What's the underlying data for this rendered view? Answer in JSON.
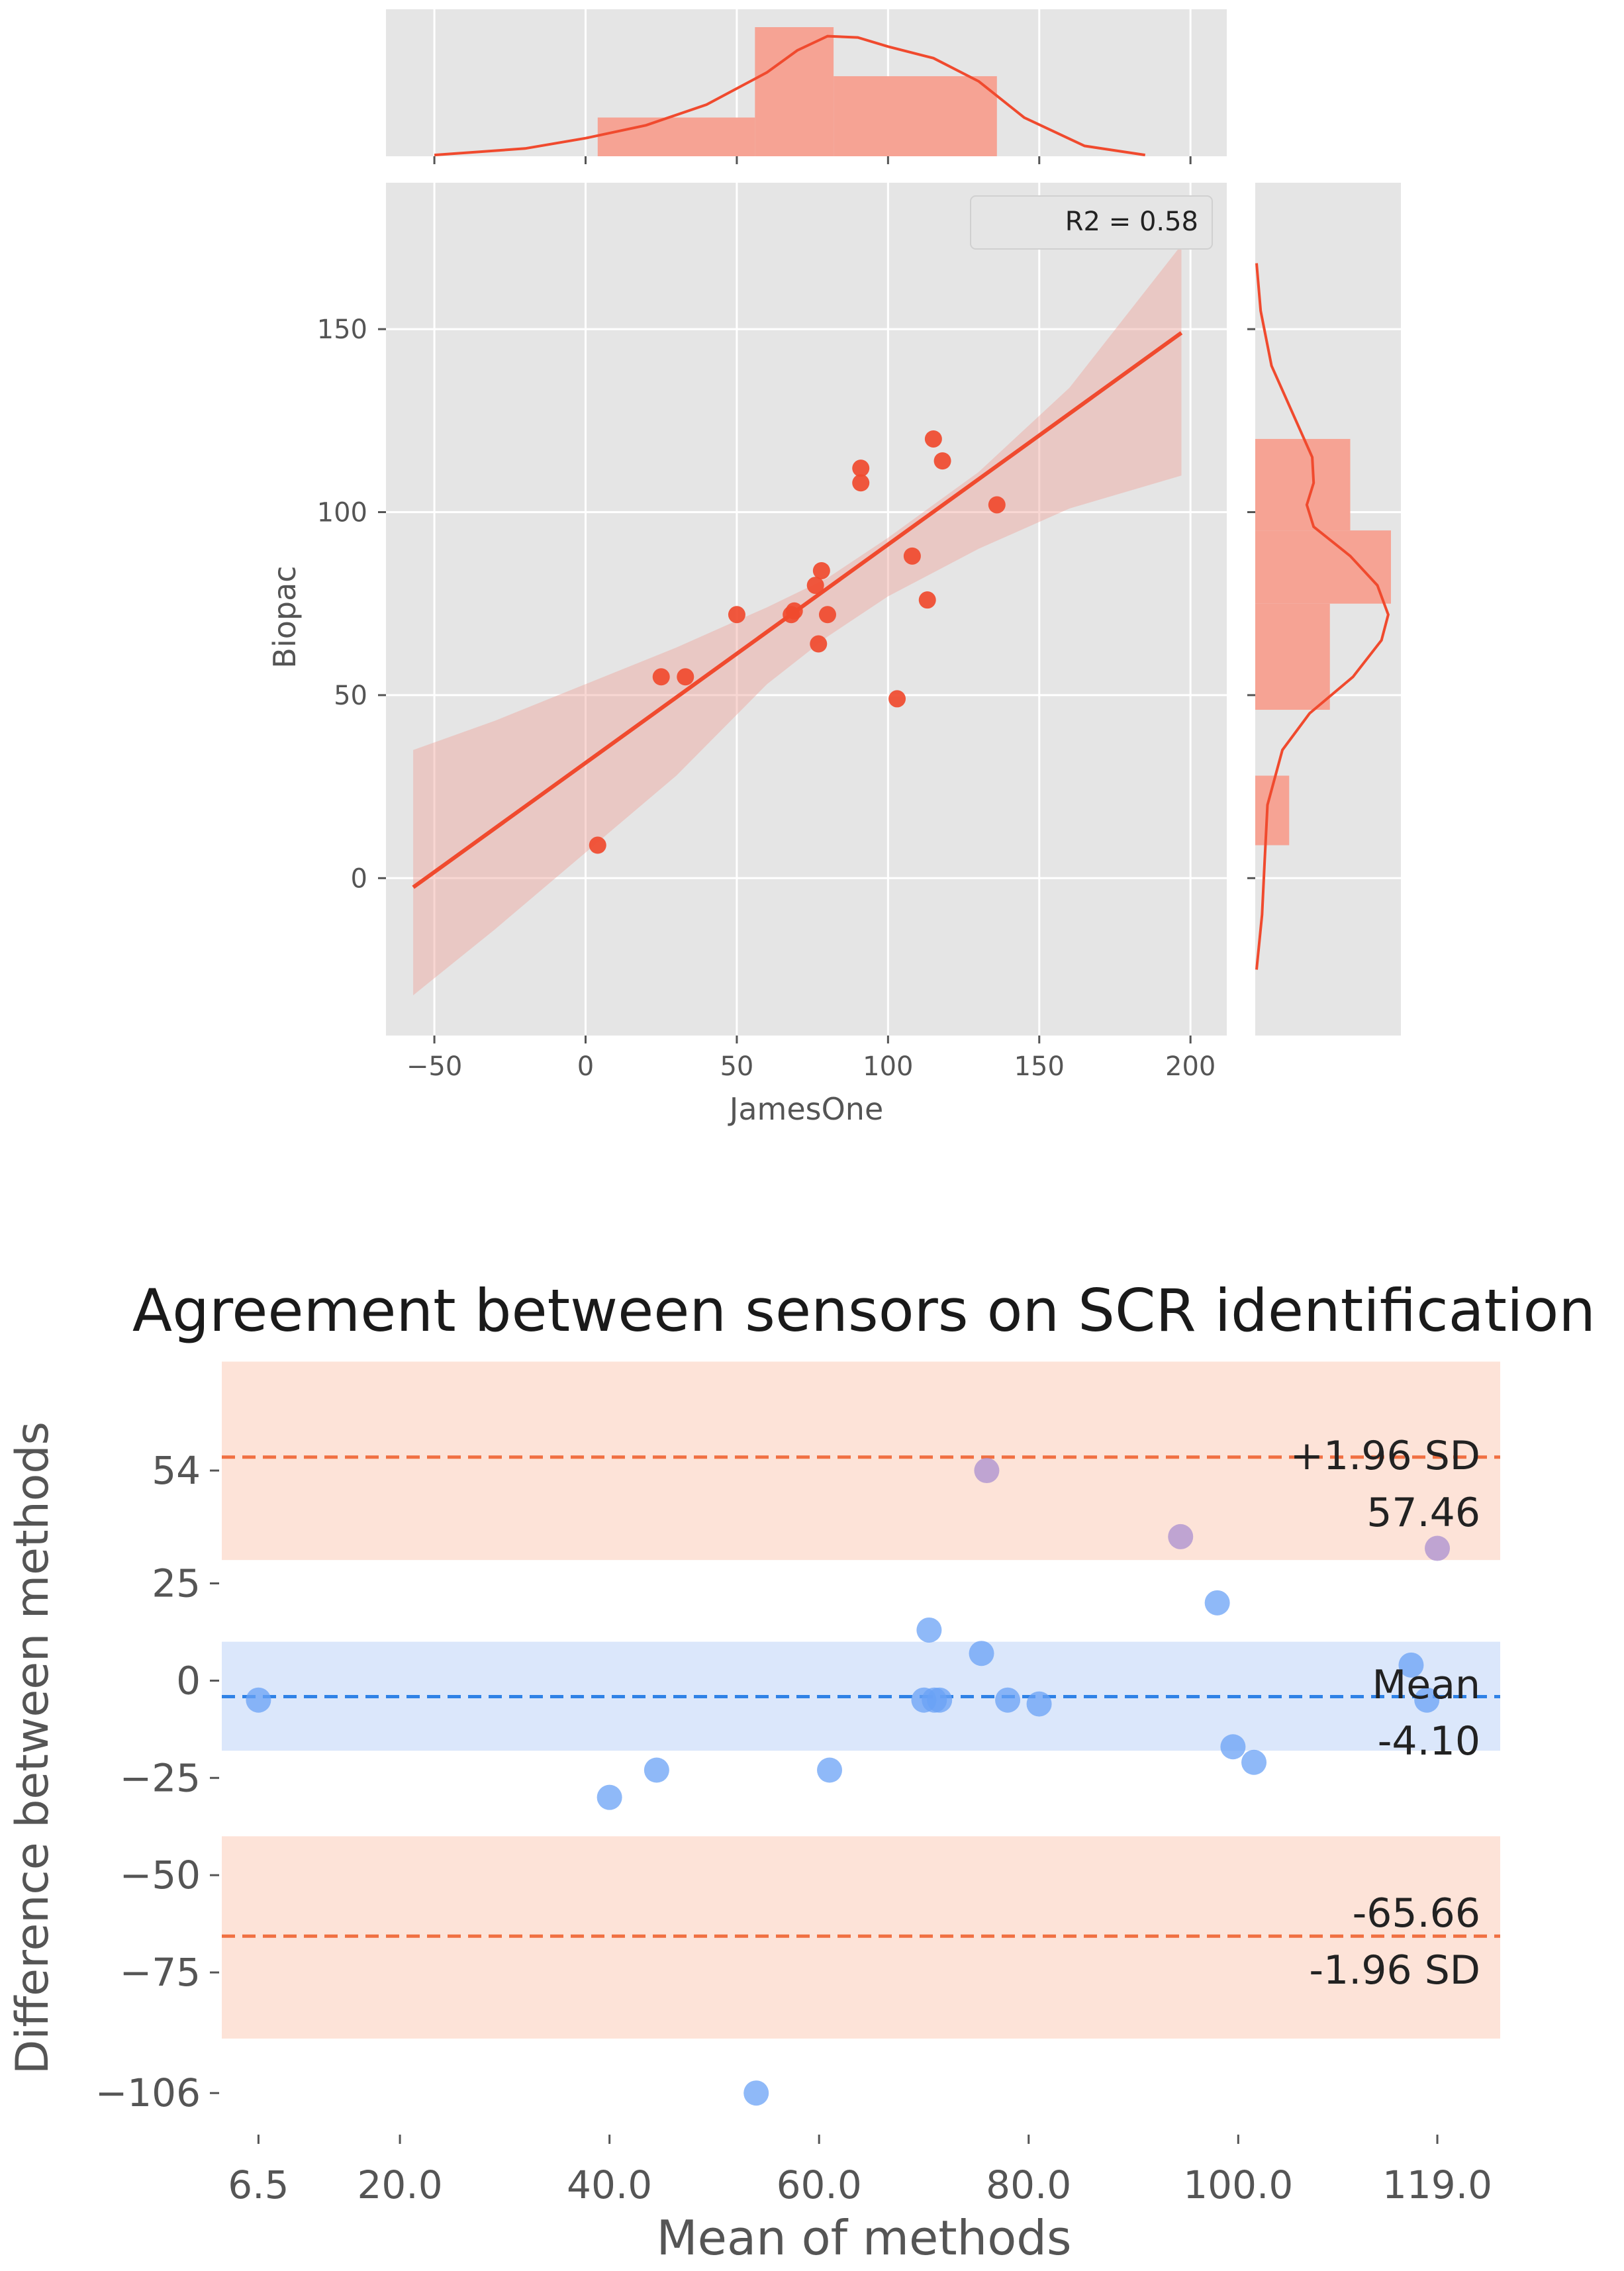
{
  "chart_data": [
    {
      "type": "scatter",
      "subtype": "jointplot-regression",
      "title": "",
      "xlabel": "JamesOne",
      "ylabel": "Biopac",
      "xlim": [
        -66,
        212
      ],
      "ylim": [
        -43,
        190
      ],
      "xticks": [
        -50,
        0,
        50,
        100,
        150,
        200
      ],
      "xtick_labels": [
        "−50",
        "0",
        "50",
        "100",
        "150",
        "200"
      ],
      "yticks": [
        0,
        50,
        100,
        150
      ],
      "ytick_labels": [
        "0",
        "50",
        "100",
        "150"
      ],
      "annotation": "R2 = 0.58",
      "points": {
        "x": [
          4,
          25,
          33,
          50,
          68,
          69,
          76,
          77,
          78,
          80,
          91,
          91,
          103,
          108,
          113,
          115,
          118,
          136
        ],
        "y": [
          9,
          55,
          55,
          72,
          72,
          73,
          80,
          64,
          84,
          72,
          108,
          112,
          49,
          88,
          76,
          120,
          114,
          102
        ]
      },
      "regression": {
        "x": [
          -57,
          197
        ],
        "y": [
          -2.5,
          149
        ]
      },
      "confidence_band": {
        "x": [
          -57,
          -30,
          0,
          30,
          60,
          80,
          100,
          130,
          160,
          197
        ],
        "upper": [
          35,
          43,
          53,
          63,
          74,
          82,
          93,
          111,
          134,
          173
        ],
        "lower": [
          -32,
          -14,
          7,
          28,
          53,
          66,
          77,
          90,
          101,
          110
        ]
      },
      "grid": true,
      "x_marginal": {
        "bins": [
          [
            4,
            56,
            0.3
          ],
          [
            56,
            82,
            1.0
          ],
          [
            82,
            136,
            0.62
          ]
        ],
        "kde_x": [
          -50,
          -20,
          0,
          20,
          40,
          60,
          70,
          80,
          90,
          100,
          115,
          130,
          145,
          165,
          185
        ],
        "kde_y": [
          0.01,
          0.06,
          0.14,
          0.24,
          0.4,
          0.65,
          0.82,
          0.93,
          0.92,
          0.85,
          0.76,
          0.58,
          0.3,
          0.08,
          0.01
        ]
      },
      "y_marginal": {
        "bins": [
          [
            9,
            28,
            0.25
          ],
          [
            46,
            75,
            0.55
          ],
          [
            75,
            95,
            1.0
          ],
          [
            95,
            120,
            0.7
          ]
        ],
        "kde_y": [
          -25,
          -10,
          5,
          20,
          35,
          45,
          55,
          65,
          72,
          80,
          88,
          96,
          102,
          108,
          115,
          125,
          140,
          155,
          168
        ],
        "kde_x": [
          0.01,
          0.05,
          0.07,
          0.09,
          0.2,
          0.4,
          0.72,
          0.93,
          0.98,
          0.9,
          0.7,
          0.43,
          0.38,
          0.43,
          0.42,
          0.3,
          0.12,
          0.04,
          0.01
        ]
      }
    },
    {
      "type": "scatter",
      "subtype": "bland-altman",
      "title": "Agreement between sensors on SCR identification",
      "xlabel": "Mean of methods",
      "ylabel": "Difference between methods",
      "xlim": [
        3,
        125
      ],
      "ylim": [
        -116,
        78
      ],
      "xticks": [
        6.5,
        20.0,
        40.0,
        60.0,
        80.0,
        100.0,
        119.0
      ],
      "xtick_labels": [
        "6.5",
        "20.0",
        "40.0",
        "60.0",
        "80.0",
        "100.0",
        "119.0"
      ],
      "yticks": [
        54,
        25,
        0,
        -25,
        -50,
        -75,
        -106
      ],
      "ytick_labels": [
        "54",
        "25",
        "0",
        "−25",
        "−50",
        "−75",
        "−106"
      ],
      "mean_line": -4.1,
      "upper_loa": 57.46,
      "lower_loa": -65.66,
      "labels": {
        "upper_sd": "+1.96 SD",
        "upper_value": "57.46",
        "mean": "Mean",
        "mean_value": "-4.10",
        "lower_value": "-65.66",
        "lower_sd": "-1.96 SD"
      },
      "bands": {
        "upper": [
          31,
          82
        ],
        "mean": [
          -18,
          10
        ],
        "lower": [
          -92,
          -40
        ]
      },
      "points": {
        "x": [
          6.5,
          40,
          44.5,
          54,
          61,
          70,
          70.5,
          71,
          71.5,
          75.5,
          76,
          78,
          81,
          94.5,
          98,
          99.5,
          101.5,
          116.5,
          118,
          119
        ],
        "y": [
          -5,
          -30,
          -23,
          -106,
          -23,
          -5,
          13,
          -5,
          -5,
          7,
          54,
          -5,
          -6,
          37,
          20,
          -17,
          -21,
          4,
          -5,
          34
        ]
      },
      "colors": {
        "points": "#6aa1f5",
        "points_in_band": "#a98fd0",
        "mean_line": "#2f82e6",
        "loa_line": "#f07042",
        "loa_band": "#fde3d8",
        "mean_band": "#dbe7fb"
      }
    }
  ],
  "colors": {
    "accent": "#f04a2e",
    "panel_bg": "#e5e5e5",
    "hist": "#f6a394",
    "band": "#ef9f97"
  }
}
